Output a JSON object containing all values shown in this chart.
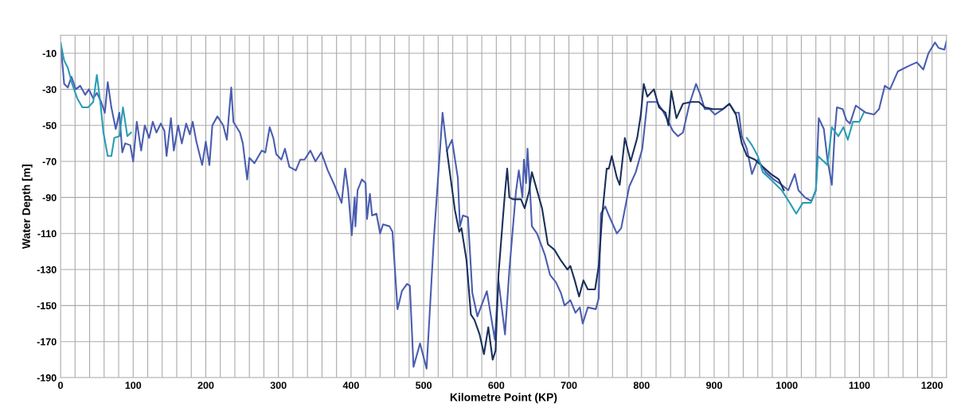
{
  "chart_data": {
    "type": "line",
    "xlabel": "Kilometre Point (KP)",
    "ylabel": "Water Depth [m]",
    "xlim": [
      0,
      1220
    ],
    "ylim": [
      -190,
      0
    ],
    "xticks": [
      0,
      {
        "value": 20,
        "label": null
      },
      {
        "value": 40,
        "label": null
      },
      {
        "value": 60,
        "label": null
      },
      {
        "value": 80,
        "label": null
      },
      100,
      {
        "value": 120,
        "label": null
      },
      {
        "value": 140,
        "label": null
      },
      {
        "value": 160,
        "label": null
      },
      {
        "value": 180,
        "label": null
      },
      200,
      {
        "value": 220,
        "label": null
      },
      {
        "value": 240,
        "label": null
      },
      {
        "value": 260,
        "label": null
      },
      {
        "value": 280,
        "label": null
      },
      300,
      {
        "value": 320,
        "label": null
      },
      {
        "value": 340,
        "label": null
      },
      {
        "value": 360,
        "label": null
      },
      {
        "value": 380,
        "label": null
      },
      400,
      {
        "value": 420,
        "label": null
      },
      {
        "value": 440,
        "label": null
      },
      {
        "value": 460,
        "label": null
      },
      {
        "value": 480,
        "label": null
      },
      500,
      {
        "value": 520,
        "label": null
      },
      {
        "value": 540,
        "label": null
      },
      {
        "value": 560,
        "label": null
      },
      {
        "value": 580,
        "label": null
      },
      600,
      {
        "value": 620,
        "label": null
      },
      {
        "value": 640,
        "label": null
      },
      {
        "value": 660,
        "label": null
      },
      {
        "value": 680,
        "label": null
      },
      700,
      {
        "value": 720,
        "label": null
      },
      {
        "value": 740,
        "label": null
      },
      {
        "value": 760,
        "label": null
      },
      {
        "value": 780,
        "label": null
      },
      800,
      {
        "value": 820,
        "label": null
      },
      {
        "value": 840,
        "label": null
      },
      {
        "value": 860,
        "label": null
      },
      {
        "value": 880,
        "label": null
      },
      900,
      {
        "value": 920,
        "label": null
      },
      {
        "value": 940,
        "label": null
      },
      {
        "value": 960,
        "label": null
      },
      {
        "value": 980,
        "label": null
      },
      1000,
      {
        "value": 1020,
        "label": null
      },
      {
        "value": 1040,
        "label": null
      },
      {
        "value": 1060,
        "label": null
      },
      {
        "value": 1080,
        "label": null
      },
      1100,
      {
        "value": 1120,
        "label": null
      },
      {
        "value": 1140,
        "label": null
      },
      {
        "value": 1160,
        "label": null
      },
      {
        "value": 1180,
        "label": null
      },
      1200,
      {
        "value": 1220,
        "label": null
      }
    ],
    "yticks": [
      -190,
      -170,
      -150,
      -130,
      -110,
      -90,
      -70,
      -50,
      -30,
      -10
    ],
    "grid": true,
    "legend": false,
    "marker": "none",
    "line_style": "solid",
    "series": [
      {
        "color": "#4a5db0",
        "x": [
          0,
          5,
          10,
          15,
          21,
          27,
          34,
          39,
          45,
          50,
          56,
          61,
          65,
          70,
          76,
          81,
          85,
          89,
          96,
          100,
          105,
          111,
          116,
          122,
          127,
          132,
          138,
          143,
          146,
          152,
          156,
          162,
          167,
          173,
          178,
          182,
          187,
          195,
          200,
          205,
          209,
          216,
          224,
          229,
          235,
          238,
          247,
          251,
          257,
          260,
          267,
          277,
          282,
          288,
          293,
          297,
          304,
          309,
          315,
          324,
          330,
          336,
          344,
          351,
          359,
          368,
          377,
          381,
          387,
          392,
          396,
          401,
          405,
          406,
          409,
          415,
          420,
          422,
          426,
          429,
          435,
          440,
          444,
          453,
          457,
          464,
          470,
          477,
          481,
          486,
          495,
          504,
          514,
          526,
          532,
          539,
          547,
          550,
          554,
          561,
          567,
          574,
          587,
          598,
          603,
          612,
          618,
          627,
          631,
          636,
          638,
          641,
          643,
          647,
          649,
          656,
          667,
          674,
          682,
          689,
          694,
          702,
          709,
          715,
          719,
          726,
          737,
          741,
          744,
          750,
          755,
          766,
          772,
          783,
          792,
          801,
          808,
          810,
          821,
          828,
          837,
          843,
          850,
          857,
          866,
          875,
          881,
          887,
          894,
          901,
          912,
          921,
          929,
          934,
          938,
          945,
          952,
          960,
          971,
          982,
          993,
          1002,
          1011,
          1016,
          1025,
          1034,
          1040,
          1044,
          1051,
          1056,
          1062,
          1066,
          1069,
          1077,
          1082,
          1087,
          1095,
          1102,
          1109,
          1120,
          1127,
          1135,
          1142,
          1153,
          1168,
          1179,
          1188,
          1195,
          1204,
          1209,
          1217,
          1220
        ],
        "values": [
          -4,
          -27,
          -29,
          -23,
          -30,
          -28,
          -33,
          -30,
          -35,
          -32,
          -37,
          -43,
          -26,
          -40,
          -52,
          -43,
          -65,
          -60,
          -61,
          -70,
          -48,
          -64,
          -50,
          -57,
          -48,
          -54,
          -49,
          -53,
          -67,
          -46,
          -64,
          -50,
          -60,
          -49,
          -55,
          -48,
          -59,
          -72,
          -59,
          -72,
          -50,
          -45,
          -50,
          -58,
          -29,
          -48,
          -54,
          -60,
          -80,
          -68,
          -71,
          -64,
          -65,
          -51,
          -57,
          -66,
          -69,
          -63,
          -73,
          -75,
          -69,
          -69,
          -64,
          -70,
          -65,
          -75,
          -83,
          -87,
          -93,
          -74,
          -86,
          -111,
          -90,
          -106,
          -86,
          -80,
          -82,
          -102,
          -88,
          -100,
          -99,
          -110,
          -105,
          -106,
          -109,
          -152,
          -142,
          -138,
          -139,
          -184,
          -171,
          -185,
          -113,
          -43,
          -64,
          -58,
          -79,
          -106,
          -100,
          -101,
          -143,
          -156,
          -142,
          -169,
          -136,
          -166,
          -130,
          -87,
          -75,
          -90,
          -69,
          -82,
          -63,
          -90,
          -106,
          -110,
          -122,
          -133,
          -137,
          -143,
          -150,
          -147,
          -154,
          -151,
          -160,
          -151,
          -152,
          -146,
          -99,
          -95,
          -100,
          -110,
          -107,
          -84,
          -76,
          -63,
          -37,
          -37,
          -37,
          -41,
          -48,
          -53,
          -56,
          -54,
          -38,
          -27,
          -33,
          -41,
          -41,
          -44,
          -41,
          -38,
          -43,
          -43,
          -56,
          -63,
          -77,
          -69,
          -76,
          -80,
          -83,
          -86,
          -77,
          -86,
          -90,
          -92,
          -86,
          -46,
          -52,
          -69,
          -83,
          -54,
          -40,
          -41,
          -47,
          -49,
          -39,
          -41,
          -43,
          -44,
          -41,
          -28,
          -30,
          -20,
          -17,
          -15,
          -19,
          -10,
          -4,
          -7,
          -8,
          -3
        ]
      },
      {
        "color": "#1a2f5a",
        "x": [
          532,
          543,
          549,
          552,
          559,
          565,
          570,
          577,
          583,
          589,
          595,
          599,
          603,
          609,
          612,
          615,
          618,
          623,
          634,
          639,
          645,
          649,
          663,
          671,
          680,
          689,
          698,
          702,
          708,
          714,
          720,
          726,
          736,
          741,
          746,
          752,
          755,
          759,
          766,
          770,
          777,
          785,
          794,
          799,
          803,
          808,
          817,
          824,
          833,
          837,
          841,
          848,
          857,
          868,
          879,
          887,
          898,
          912,
          921,
          930,
          938,
          945,
          956,
          967,
          978,
          989,
          996
        ],
        "values": [
          -64,
          -97,
          -109,
          -107,
          -125,
          -155,
          -158,
          -166,
          -177,
          -162,
          -180,
          -175,
          -133,
          -102,
          -87,
          -74,
          -90,
          -91,
          -91,
          -96,
          -87,
          -76,
          -96,
          -116,
          -119,
          -125,
          -130,
          -128,
          -136,
          -145,
          -136,
          -141,
          -141,
          -128,
          -99,
          -74,
          -74,
          -67,
          -79,
          -83,
          -57,
          -70,
          -57,
          -44,
          -27,
          -34,
          -30,
          -40,
          -43,
          -50,
          -31,
          -46,
          -38,
          -37,
          -37,
          -40,
          -41,
          -41,
          -38,
          -44,
          -60,
          -67,
          -69,
          -73,
          -77,
          -80,
          -86
        ]
      },
      {
        "color": "#2a9db5",
        "x": [
          0,
          5,
          10,
          16,
          23,
          30,
          38,
          45,
          50,
          55,
          59,
          65,
          70,
          74,
          81,
          86,
          92,
          97,
          null,
          945,
          952,
          960,
          967,
          978,
          993,
          1004,
          1013,
          1022,
          1033,
          1040,
          1043,
          1056,
          1062,
          1071,
          1078,
          1084,
          1091,
          1100,
          1106
        ],
        "values": [
          -4,
          -14,
          -18,
          -27,
          -35,
          -40,
          -40,
          -37,
          -22,
          -38,
          -54,
          -67,
          -67,
          -57,
          -56,
          -40,
          -56,
          -54,
          null,
          -57,
          -61,
          -67,
          -76,
          -80,
          -86,
          -93,
          -99,
          -93,
          -93,
          -86,
          -67,
          -72,
          -51,
          -56,
          -51,
          -58,
          -48,
          -48,
          -43
        ]
      }
    ]
  }
}
